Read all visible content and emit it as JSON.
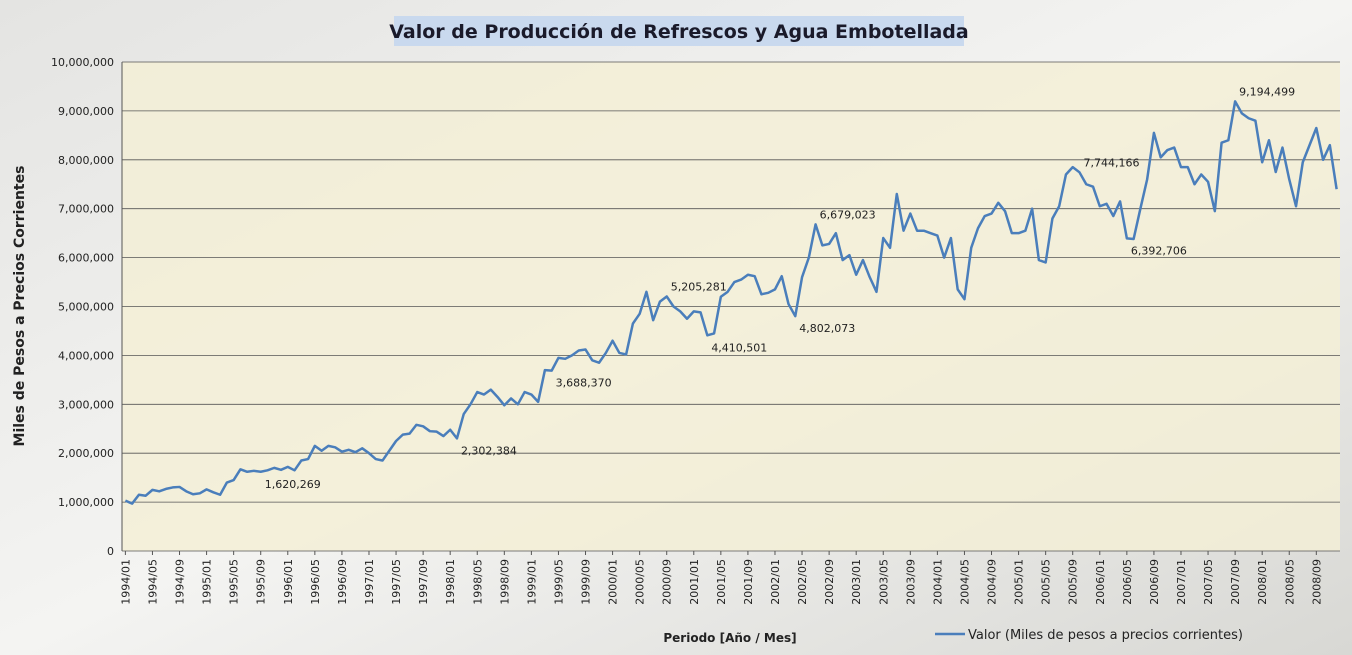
{
  "chart_data": {
    "type": "line",
    "title": "Valor de Producción de Refrescos y Agua Embotellada",
    "ylabel": "Miles de Pesos a Precios Corrientes",
    "xlabel": "Periodo  [Año / Mes]",
    "categories": [
      "1994/01",
      null,
      null,
      null,
      "1994/05",
      null,
      null,
      null,
      "1994/09",
      null,
      null,
      null,
      "1995/01",
      null,
      null,
      null,
      "1995/05",
      null,
      null,
      null,
      "1995/09",
      null,
      null,
      null,
      "1996/01",
      null,
      null,
      null,
      "1996/05",
      null,
      null,
      null,
      "1996/09",
      null,
      null,
      null,
      "1997/01",
      null,
      null,
      null,
      "1997/05",
      null,
      null,
      null,
      "1997/09",
      null,
      null,
      null,
      "1998/01",
      null,
      null,
      null,
      "1998/05",
      null,
      null,
      null,
      "1998/09",
      null,
      null,
      null,
      "1999/01",
      null,
      null,
      null,
      "1999/05",
      null,
      null,
      null,
      "1999/09",
      null,
      null,
      null,
      "2000/01",
      null,
      null,
      null,
      "2000/05",
      null,
      null,
      null,
      "2000/09",
      null,
      null,
      null,
      "2001/01",
      null,
      null,
      null,
      "2001/05",
      null,
      null,
      null,
      "2001/09",
      null,
      null,
      null,
      "2002/01",
      null,
      null,
      null,
      "2002/05",
      null,
      null,
      null,
      "2002/09",
      null,
      null,
      null,
      "2003/01",
      null,
      null,
      null,
      "2003/05",
      null,
      null,
      null,
      "2003/09",
      null,
      null,
      null,
      "2004/01",
      null,
      null,
      null,
      "2004/05",
      null,
      null,
      null,
      "2004/09",
      null,
      null,
      null,
      "2005/01",
      null,
      null,
      null,
      "2005/05",
      null,
      null,
      null,
      "2005/09",
      null,
      null,
      null,
      "2006/01",
      null,
      null,
      null,
      "2006/05",
      null,
      null,
      null,
      "2006/09",
      null,
      null,
      null,
      "2007/01",
      null,
      null,
      null,
      "2007/05",
      null,
      null,
      null,
      "2007/09",
      null,
      null,
      null,
      "2008/01",
      null,
      null,
      null,
      "2008/05",
      null,
      null,
      null,
      "2008/09",
      null,
      null,
      null
    ],
    "series": [
      {
        "name": "Valor (Miles de pesos a precios corrientes)",
        "color": "#4a7ebb",
        "values": [
          1030000,
          970000,
          1150000,
          1130000,
          1250000,
          1220000,
          1270000,
          1300000,
          1310000,
          1220000,
          1160000,
          1180000,
          1260000,
          1200000,
          1150000,
          1400000,
          1450000,
          1670000,
          1620000,
          1640000,
          1620269,
          1650000,
          1700000,
          1660000,
          1720000,
          1650000,
          1850000,
          1880000,
          2150000,
          2050000,
          2150000,
          2120000,
          2030000,
          2070000,
          2020000,
          2100000,
          2000000,
          1880000,
          1850000,
          2050000,
          2250000,
          2380000,
          2400000,
          2580000,
          2550000,
          2450000,
          2440000,
          2350000,
          2480000,
          2302384,
          2800000,
          3000000,
          3250000,
          3200000,
          3300000,
          3150000,
          2980000,
          3120000,
          3000000,
          3250000,
          3200000,
          3050000,
          3700000,
          3688370,
          3950000,
          3930000,
          4000000,
          4100000,
          4120000,
          3900000,
          3850000,
          4050000,
          4300000,
          4050000,
          4020000,
          4650000,
          4850000,
          5300000,
          4720000,
          5100000,
          5205281,
          5000000,
          4900000,
          4750000,
          4900000,
          4880000,
          4410501,
          4450000,
          5200000,
          5300000,
          5500000,
          5550000,
          5650000,
          5620000,
          5250000,
          5280000,
          5350000,
          5620000,
          5050000,
          4802073,
          5600000,
          6000000,
          6679023,
          6250000,
          6280000,
          6500000,
          5950000,
          6050000,
          5650000,
          5950000,
          5600000,
          5300000,
          6400000,
          6200000,
          7300000,
          6550000,
          6900000,
          6550000,
          6550000,
          6500000,
          6450000,
          6000000,
          6400000,
          5350000,
          5150000,
          6200000,
          6600000,
          6850000,
          6900000,
          7120000,
          6950000,
          6500000,
          6500000,
          6550000,
          7000000,
          5950000,
          5900000,
          6800000,
          7050000,
          7700000,
          7850000,
          7744166,
          7500000,
          7450000,
          7050000,
          7100000,
          6850000,
          7150000,
          6392706,
          6380000,
          7000000,
          7600000,
          8550000,
          8050000,
          8200000,
          8250000,
          7850000,
          7850000,
          7500000,
          7700000,
          7550000,
          6950000,
          8350000,
          8400000,
          9194499,
          8950000,
          8850000,
          8800000,
          7950000,
          8400000,
          7750000,
          8250000,
          7600000,
          7050000,
          7950000,
          8300000,
          8650000,
          8000000,
          8300000,
          7400000
        ],
        "value_labels": [
          null,
          null,
          null,
          null,
          null,
          null,
          null,
          null,
          null,
          null,
          null,
          null,
          null,
          null,
          null,
          null,
          null,
          null,
          null,
          null,
          "1,620,269",
          null,
          null,
          null,
          null,
          null,
          null,
          null,
          null,
          null,
          null,
          null,
          null,
          null,
          null,
          null,
          null,
          null,
          null,
          null,
          null,
          null,
          null,
          null,
          null,
          null,
          null,
          null,
          null,
          "2,302,384",
          null,
          null,
          null,
          null,
          null,
          null,
          null,
          null,
          null,
          null,
          null,
          null,
          null,
          "3,688,370",
          null,
          null,
          null,
          null,
          null,
          null,
          null,
          null,
          null,
          null,
          null,
          null,
          null,
          null,
          null,
          null,
          "5,205,281",
          null,
          null,
          null,
          null,
          null,
          "4,410,501",
          null,
          null,
          null,
          null,
          null,
          null,
          null,
          null,
          null,
          null,
          null,
          null,
          "4,802,073",
          null,
          null,
          "6,679,023",
          null,
          null,
          null,
          null,
          null,
          null,
          null,
          null,
          null,
          null,
          null,
          null,
          null,
          null,
          null,
          null,
          null,
          null,
          null,
          null,
          null,
          null,
          null,
          null,
          null,
          null,
          null,
          null,
          null,
          null,
          null,
          null,
          null,
          null,
          null,
          null,
          null,
          null,
          "7,744,166",
          null,
          null,
          null,
          null,
          null,
          null,
          "6,392,706",
          null,
          null,
          null,
          null,
          null,
          null,
          null,
          null,
          null,
          null,
          null,
          null,
          null,
          null,
          null,
          "9,194,499",
          null,
          null,
          null,
          null,
          null,
          null,
          null,
          null,
          null,
          null,
          null,
          null,
          null,
          null,
          null
        ]
      }
    ],
    "ylim": [
      0,
      10000000
    ],
    "yticks": [
      0,
      {
        "value": 1000000,
        "label": "1,000,000"
      },
      {
        "value": 2000000,
        "label": "2,000,000"
      },
      {
        "value": 3000000,
        "label": "3,000,000"
      },
      {
        "value": 4000000,
        "label": "4,000,000"
      },
      {
        "value": 5000000,
        "label": "5,000,000"
      },
      {
        "value": 6000000,
        "label": "6,000,000"
      },
      {
        "value": 7000000,
        "label": "7,000,000"
      },
      {
        "value": 8000000,
        "label": "8,000,000"
      },
      {
        "value": 9000000,
        "label": "9,000,000"
      },
      {
        "value": 10000000,
        "label": "10,000,000"
      }
    ],
    "grid": true,
    "legend": "bottom-right"
  }
}
